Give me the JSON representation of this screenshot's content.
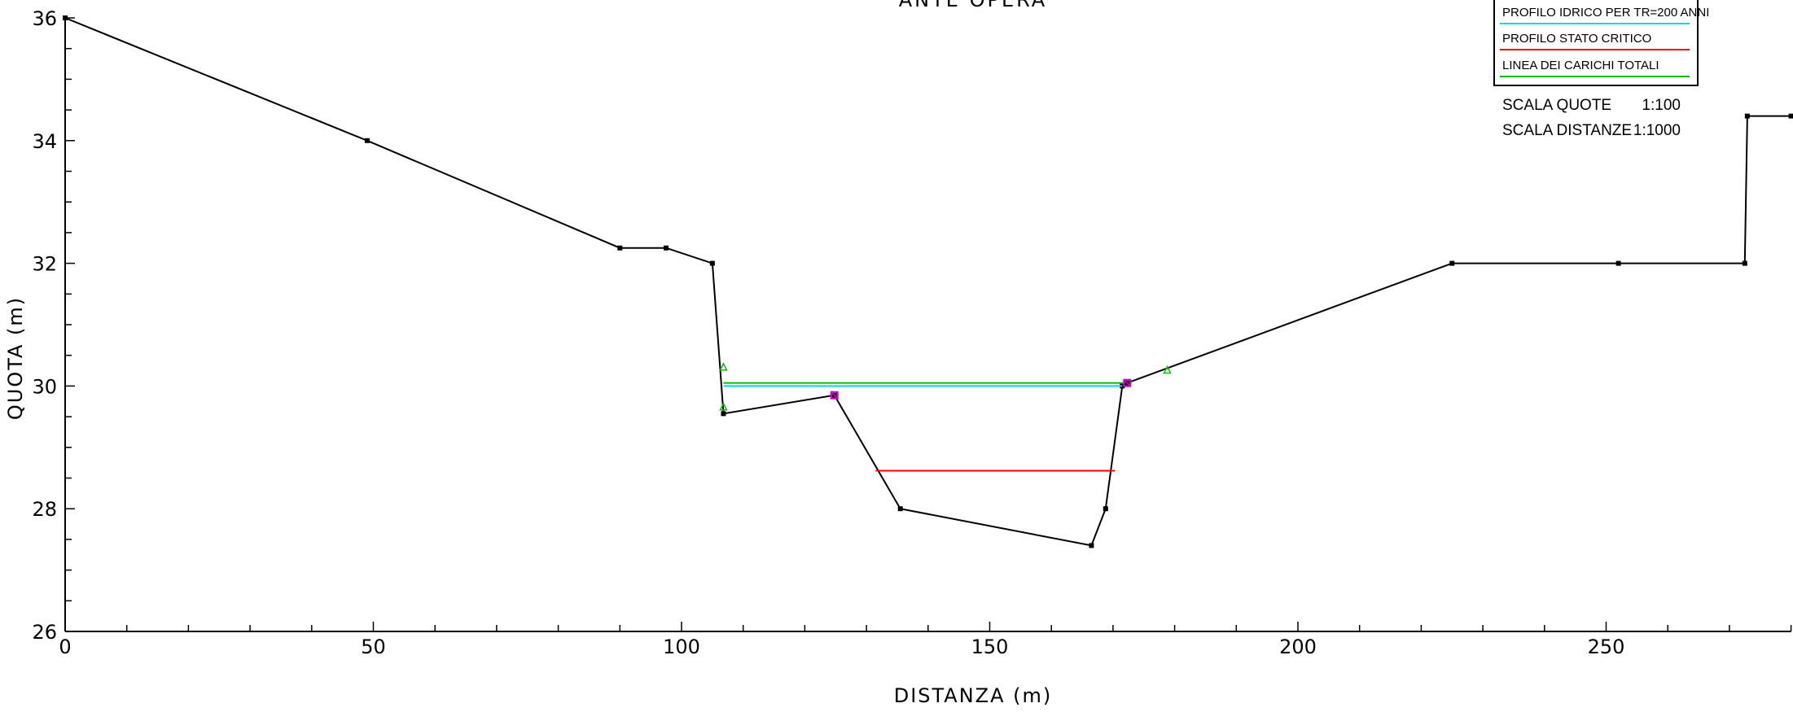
{
  "chart_data": {
    "type": "line",
    "title": "ANTE OPERA",
    "xlabel": "DISTANZA (m)",
    "ylabel": "QUOTA (m)",
    "xlim": [
      0,
      280
    ],
    "ylim": [
      26,
      36
    ],
    "x_ticks": [
      0,
      50,
      100,
      150,
      200,
      250
    ],
    "y_ticks": [
      26,
      28,
      30,
      32,
      34,
      36
    ],
    "x_minor_step": 10,
    "y_minor_step": 0.5,
    "grid": false,
    "legend_position": "top-right",
    "legend": [
      {
        "label": "PROFILO IDRICO PER TR=200 ANNI",
        "color": "#00d7e0"
      },
      {
        "label": "PROFILO STATO CRITICO",
        "color": "#ff0000"
      },
      {
        "label": "LINEA DEI CARICHI TOTALI",
        "color": "#00c000"
      }
    ],
    "scale": [
      {
        "label": "SCALA QUOTE",
        "value": "1:100"
      },
      {
        "label": "SCALA DISTANZE",
        "value": "1:1000"
      }
    ],
    "series": [
      {
        "kind": "ground",
        "color": "#000000",
        "points": [
          [
            0,
            36.0
          ],
          [
            49,
            34.0
          ],
          [
            90,
            32.25
          ],
          [
            97.5,
            32.25
          ],
          [
            105,
            32.0
          ],
          [
            106.8,
            29.55
          ],
          [
            124.8,
            29.85
          ],
          [
            135.5,
            28.0
          ],
          [
            166.5,
            27.4
          ],
          [
            168.8,
            28.0
          ],
          [
            171.5,
            30.0
          ],
          [
            172.3,
            30.05
          ],
          [
            225,
            32.0
          ],
          [
            252,
            32.0
          ],
          [
            272.5,
            32.0
          ],
          [
            272.9,
            34.4
          ],
          [
            280,
            34.4
          ]
        ]
      },
      {
        "kind": "water_surface",
        "color": "#00d7e0",
        "points": [
          [
            106.8,
            30.0
          ],
          [
            171.5,
            30.0
          ]
        ]
      },
      {
        "kind": "energy_line",
        "color": "#00c000",
        "points": [
          [
            106.8,
            30.05
          ],
          [
            171.6,
            30.05
          ]
        ]
      },
      {
        "kind": "critical_depth",
        "color": "#ff0000",
        "points": [
          [
            131.5,
            28.62
          ],
          [
            170.3,
            28.62
          ]
        ]
      }
    ],
    "markers": [
      {
        "kind": "bank",
        "color": "#cc00cc",
        "points": [
          [
            124.8,
            29.85
          ],
          [
            172.3,
            30.05
          ]
        ]
      },
      {
        "kind": "levee",
        "color": "#00c000",
        "points": [
          [
            106.8,
            30.3
          ],
          [
            106.8,
            29.65
          ],
          [
            178.8,
            30.25
          ]
        ]
      }
    ]
  }
}
